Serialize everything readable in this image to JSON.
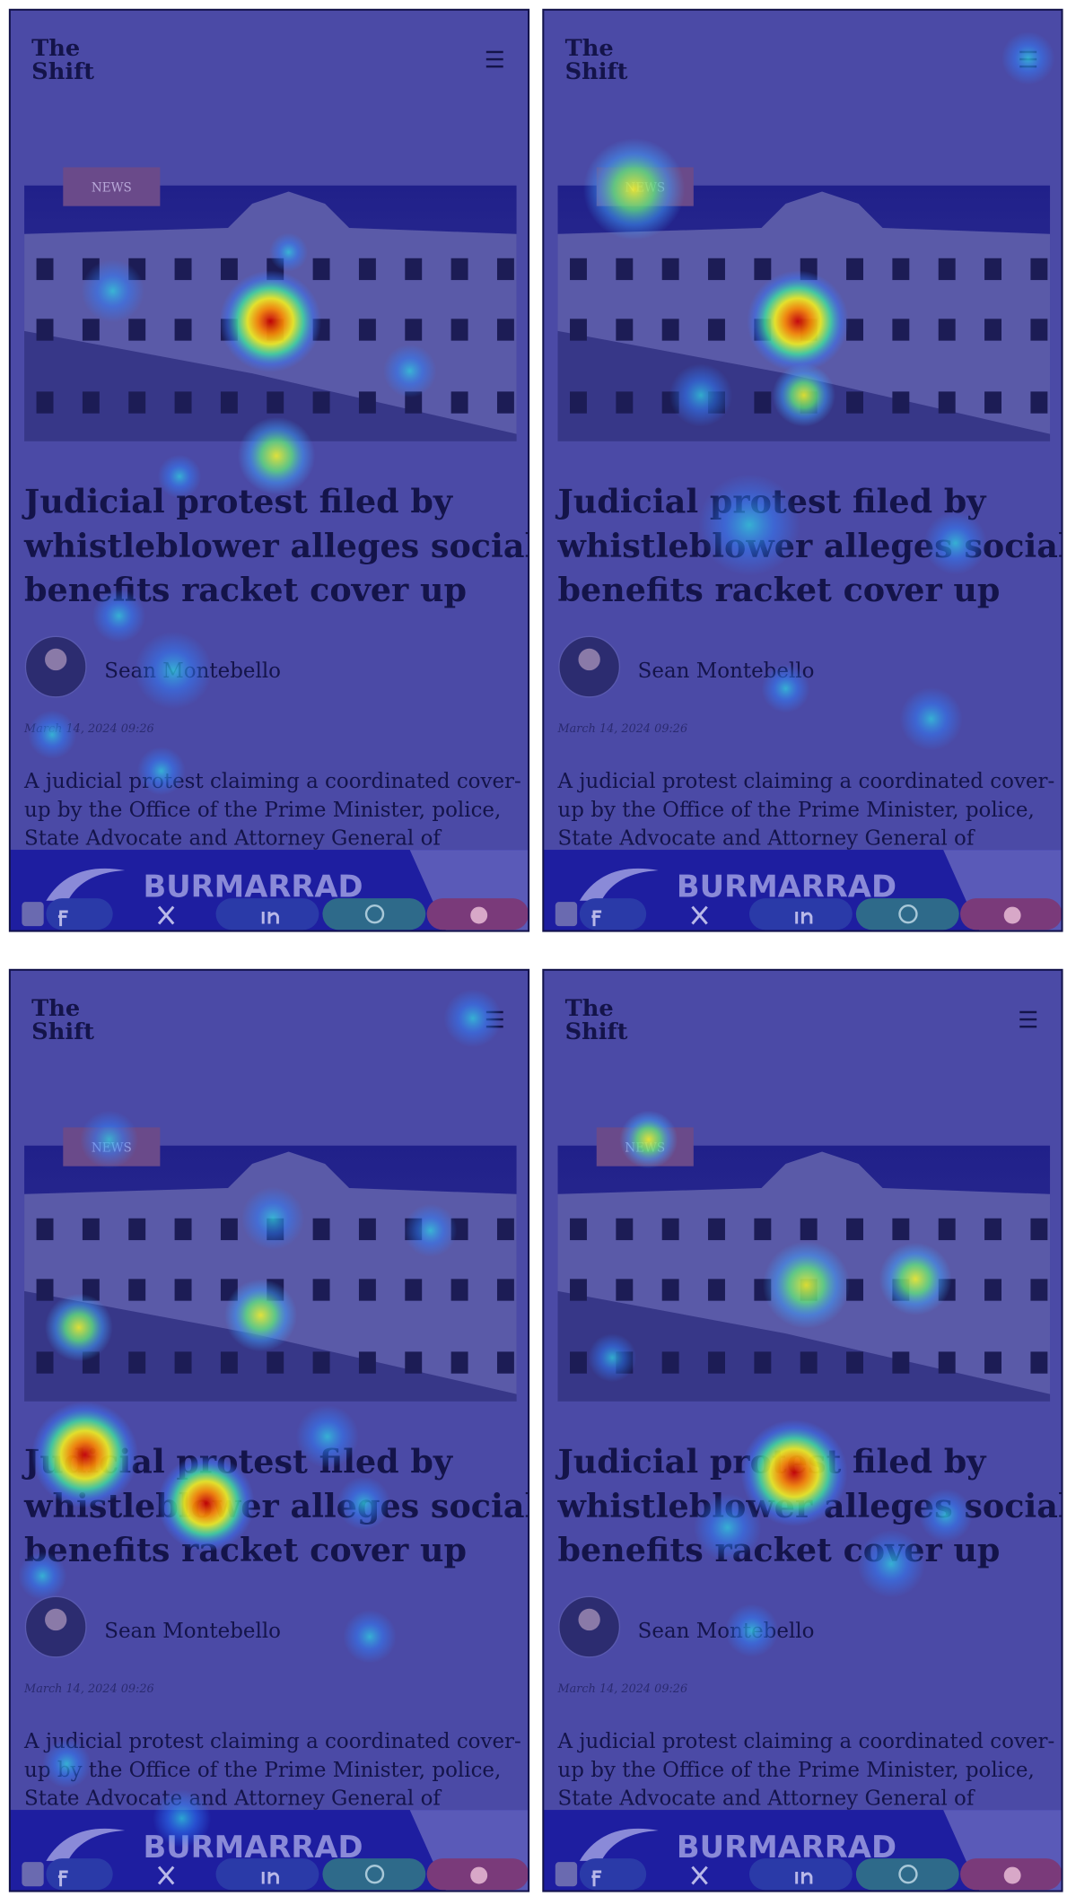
{
  "article": {
    "logo": [
      "The",
      "Shift"
    ],
    "tag": "NEWS",
    "headline": [
      "Judicial protest filed by",
      "whistleblower alleges social",
      "benefits racket cover up"
    ],
    "author": "Sean Montebello",
    "date": "March 14, 2024 09:26",
    "excerpt": [
      "A judicial protest claiming a coordinated cover-",
      "up by the Office of the Prime Minister, police,",
      "State Advocate and Attorney General of"
    ],
    "ad": "BURMARRAD"
  }
}
